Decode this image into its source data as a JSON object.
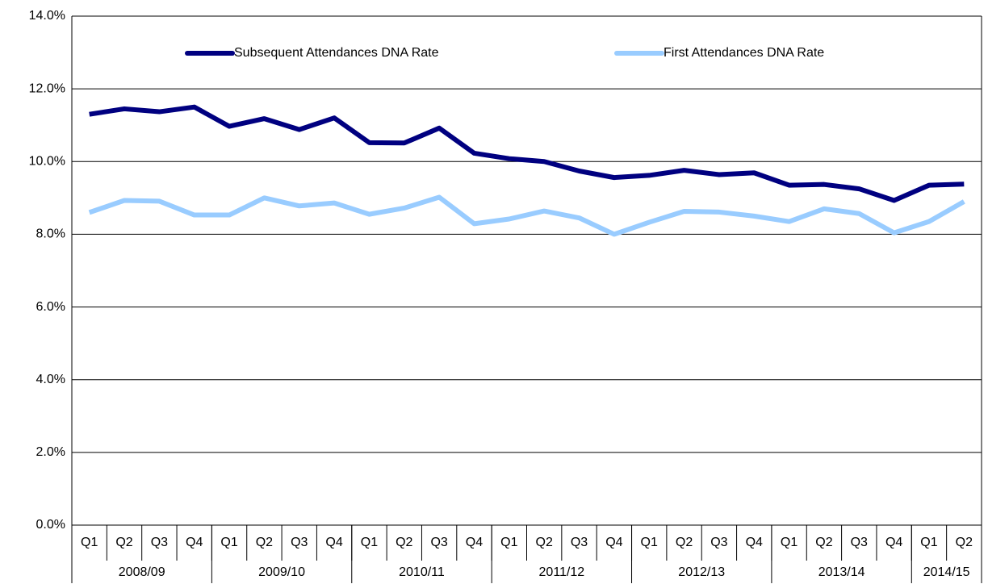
{
  "chart_data": {
    "type": "line",
    "groups": [
      {
        "name": "2008/09",
        "categories": [
          "Q1",
          "Q2",
          "Q3",
          "Q4"
        ]
      },
      {
        "name": "2009/10",
        "categories": [
          "Q1",
          "Q2",
          "Q3",
          "Q4"
        ]
      },
      {
        "name": "2010/11",
        "categories": [
          "Q1",
          "Q2",
          "Q3",
          "Q4"
        ]
      },
      {
        "name": "2011/12",
        "categories": [
          "Q1",
          "Q2",
          "Q3",
          "Q4"
        ]
      },
      {
        "name": "2012/13",
        "categories": [
          "Q1",
          "Q2",
          "Q3",
          "Q4"
        ]
      },
      {
        "name": "2013/14",
        "categories": [
          "Q1",
          "Q2",
          "Q3",
          "Q4"
        ]
      },
      {
        "name": "2014/15",
        "categories": [
          "Q1",
          "Q2"
        ]
      }
    ],
    "series": [
      {
        "name": "Subsequent Attendances DNA Rate",
        "color": "#000080",
        "values": [
          11.3,
          11.45,
          11.37,
          11.5,
          10.97,
          11.18,
          10.88,
          11.2,
          10.52,
          10.51,
          10.92,
          10.23,
          10.08,
          10.0,
          9.74,
          9.56,
          9.62,
          9.76,
          9.64,
          9.69,
          9.35,
          9.37,
          9.25,
          8.93,
          9.35,
          9.38
        ]
      },
      {
        "name": "First Attendances DNA Rate",
        "color": "#99ccff",
        "values": [
          8.6,
          8.93,
          8.91,
          8.53,
          8.53,
          9.0,
          8.78,
          8.86,
          8.55,
          8.72,
          9.02,
          8.29,
          8.42,
          8.64,
          8.45,
          8.0,
          8.33,
          8.63,
          8.61,
          8.5,
          8.35,
          8.7,
          8.57,
          8.04,
          8.35,
          8.9
        ]
      }
    ],
    "ylim": [
      0,
      14
    ],
    "yticks": [
      {
        "value": 0,
        "label": "0.0%"
      },
      {
        "value": 2,
        "label": "2.0%"
      },
      {
        "value": 4,
        "label": "4.0%"
      },
      {
        "value": 6,
        "label": "6.0%"
      },
      {
        "value": 8,
        "label": "8.0%"
      },
      {
        "value": 10,
        "label": "10.0%"
      },
      {
        "value": 12,
        "label": "12.0%"
      },
      {
        "value": 14,
        "label": "14.0%"
      }
    ],
    "grid": true,
    "legend": "top"
  }
}
